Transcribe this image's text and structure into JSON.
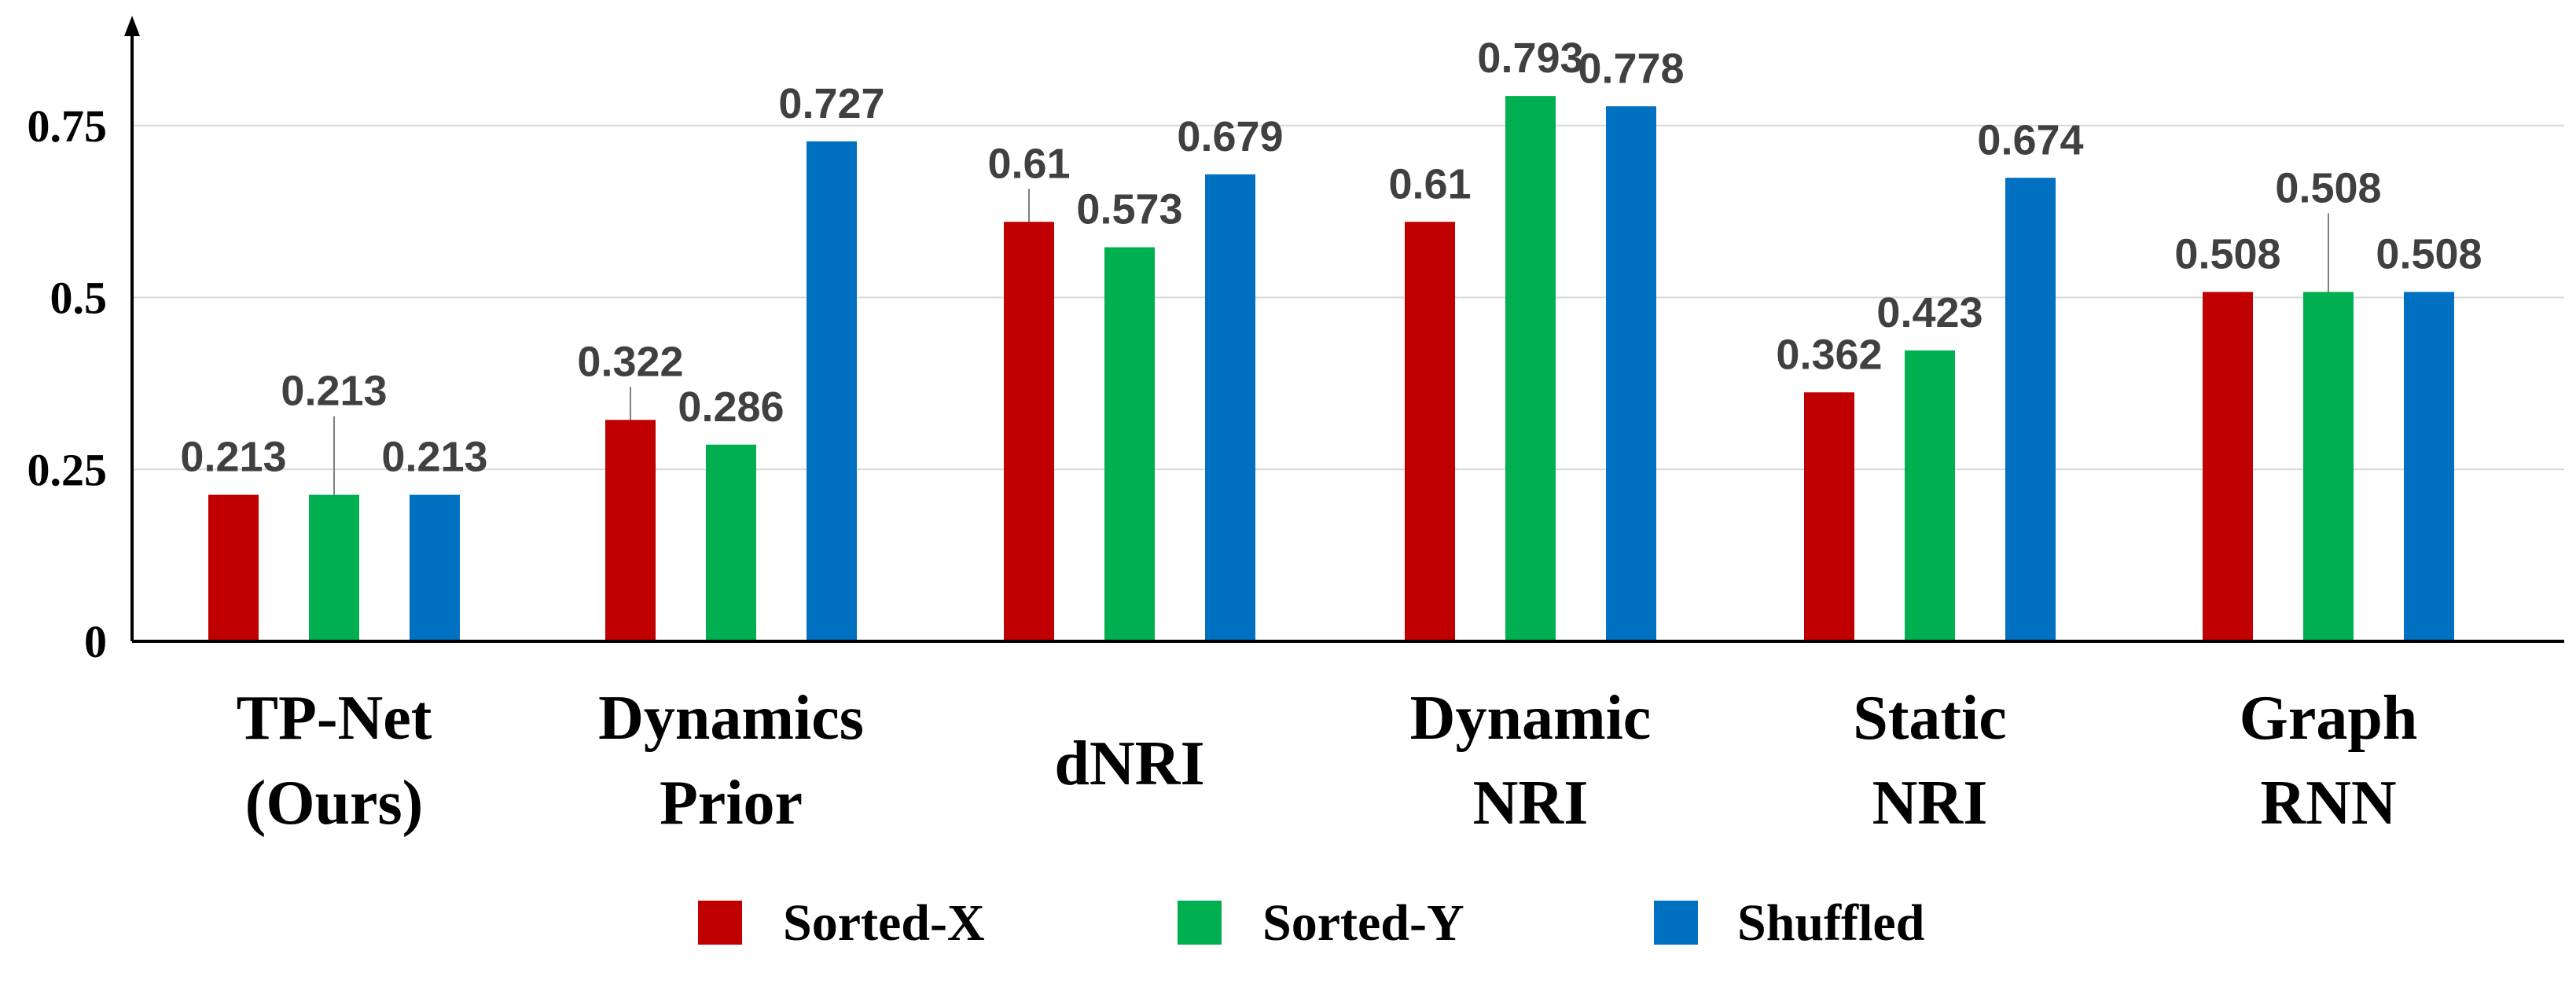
{
  "chart_data": {
    "type": "bar",
    "title": "",
    "xlabel": "",
    "ylabel": "",
    "ylim": [
      0,
      0.85
    ],
    "yticks": [
      0,
      0.25,
      0.5,
      0.75
    ],
    "ytick_labels": [
      "0",
      "0.25",
      "0.5",
      "0.75"
    ],
    "grid": true,
    "legend_position": "bottom",
    "categories": [
      [
        "TP-Net",
        "(Ours)"
      ],
      [
        "Dynamics",
        "Prior"
      ],
      [
        "dNRI"
      ],
      [
        "Dynamic",
        "NRI"
      ],
      [
        "Static",
        "NRI"
      ],
      [
        "Graph",
        "RNN"
      ]
    ],
    "series": [
      {
        "name": "Sorted-X",
        "color": "#C00000",
        "values": [
          0.213,
          0.322,
          0.61,
          0.61,
          0.362,
          0.508
        ],
        "labels": [
          "0.213",
          "0.322",
          "0.61",
          "0.61",
          "0.362",
          "0.508"
        ]
      },
      {
        "name": "Sorted-Y",
        "color": "#00B050",
        "values": [
          0.213,
          0.286,
          0.573,
          0.793,
          0.423,
          0.508
        ],
        "labels": [
          "0.213",
          "0.286",
          "0.573",
          "0.793",
          "0.423",
          "0.508"
        ]
      },
      {
        "name": "Shuffled",
        "color": "#0070C0",
        "values": [
          0.213,
          0.727,
          0.679,
          0.778,
          0.674,
          0.508
        ],
        "labels": [
          "0.213",
          "0.727",
          "0.679",
          "0.778",
          "0.674",
          "0.508"
        ]
      }
    ]
  }
}
